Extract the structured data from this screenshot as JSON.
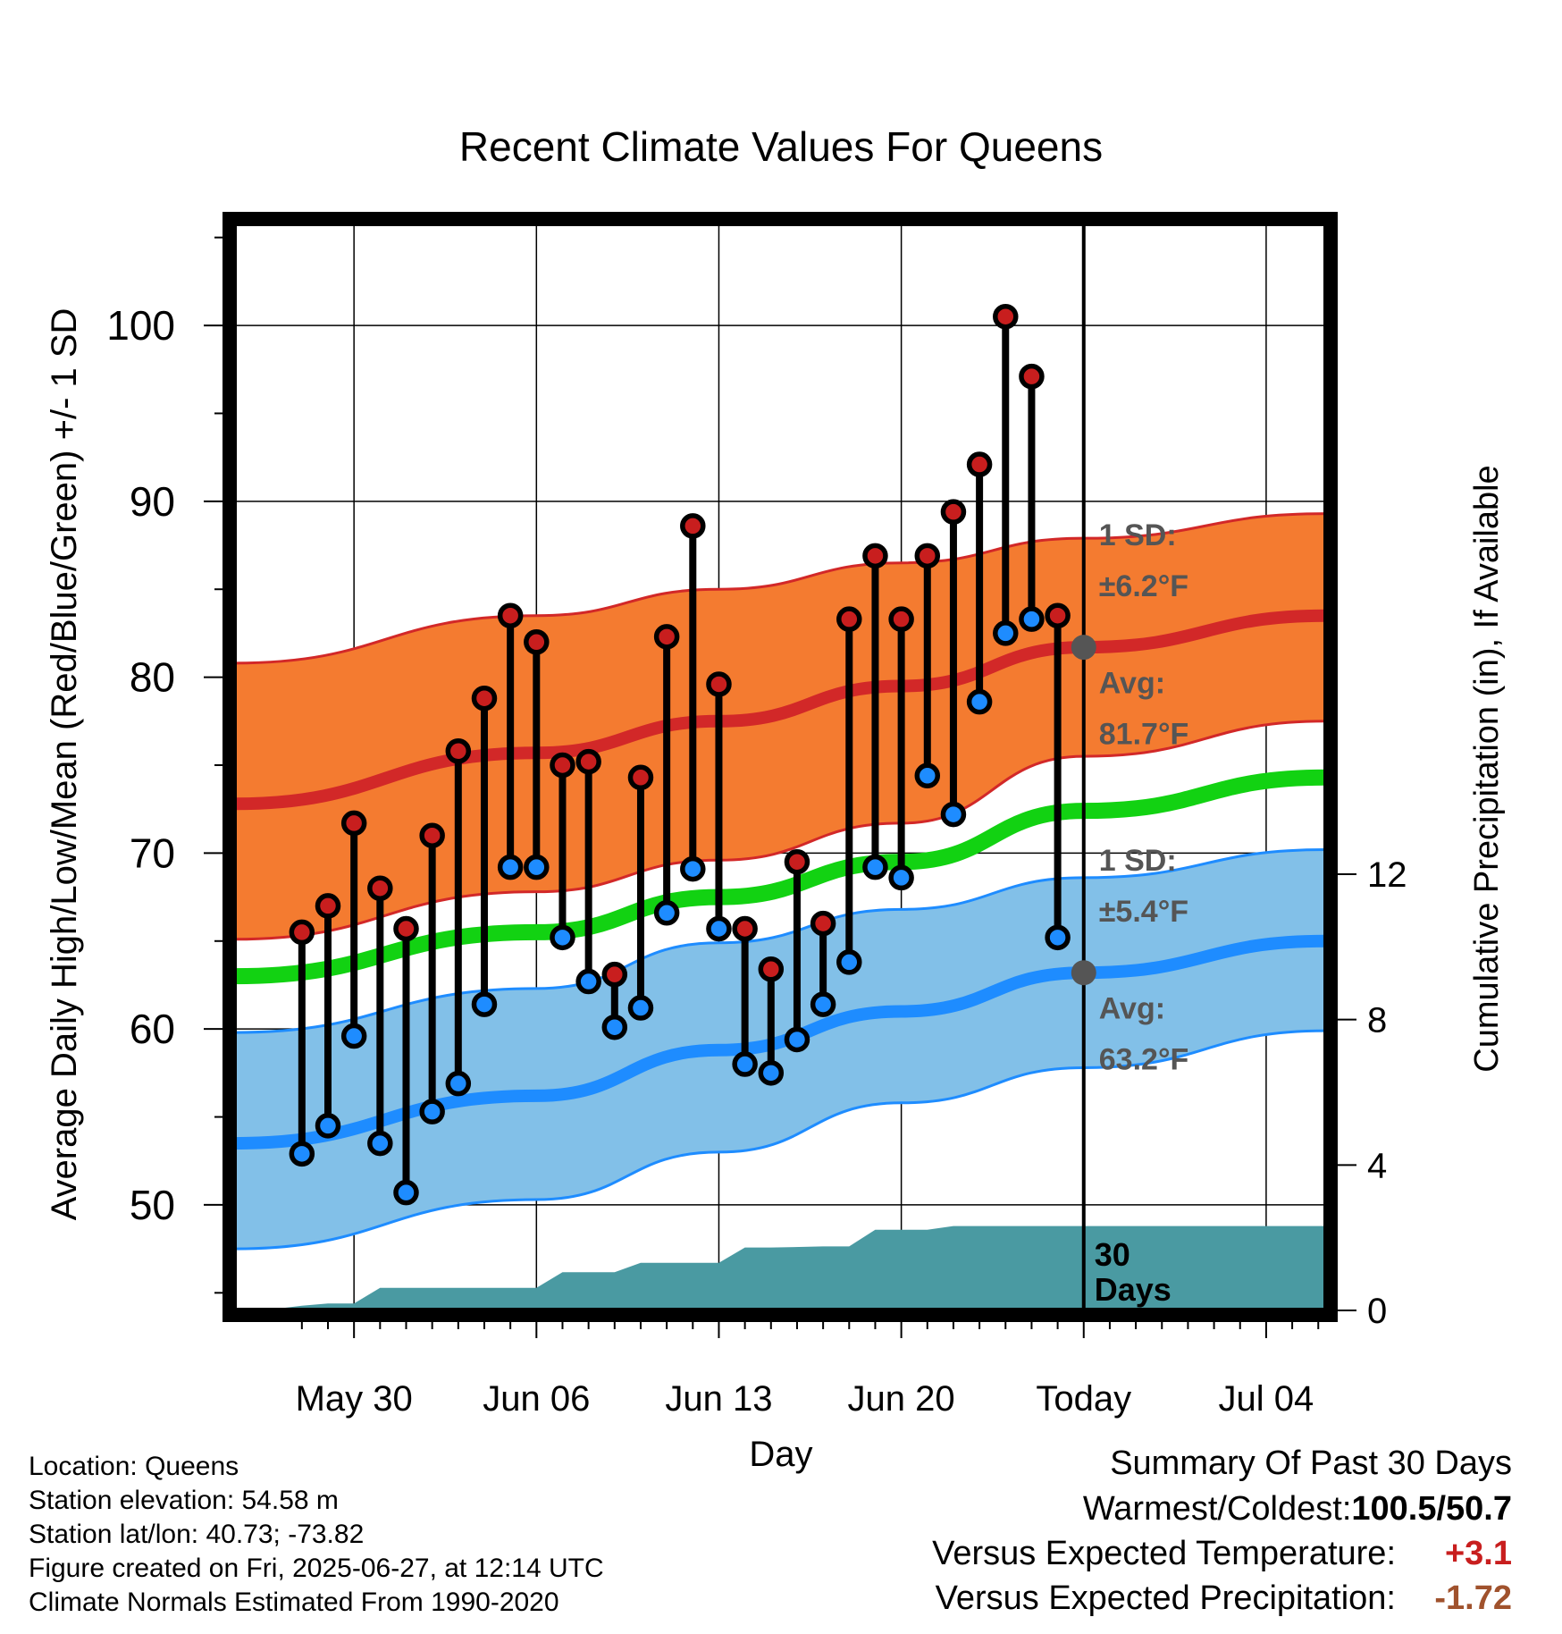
{
  "chart_data": {
    "type": "line",
    "title": "Recent Climate Values For Queens",
    "xlabel": "Day",
    "ylabel": "Average Daily High/Low/Mean (Red/Blue/Green) +/- 1 SD",
    "y2label": "Cumulative Precipitation (in), If Available",
    "ylim": [
      44,
      106
    ],
    "y_ticks": [
      50,
      60,
      70,
      80,
      90,
      100
    ],
    "y2lim": [
      0,
      30
    ],
    "y2_ticks": [
      0,
      4,
      8,
      12
    ],
    "x_range_days": [
      -32.6,
      9.3
    ],
    "x_ticks": [
      {
        "day": -28,
        "label": "May 30"
      },
      {
        "day": -21,
        "label": "Jun 06"
      },
      {
        "day": -14,
        "label": "Jun 13"
      },
      {
        "day": -7,
        "label": "Jun 20"
      },
      {
        "day": 0,
        "label": "Today"
      },
      {
        "day": 7,
        "label": "Jul 04"
      }
    ],
    "grid": true,
    "today_marker_day": 0,
    "period_label": "30 Days",
    "normals": {
      "days": [
        -32.6,
        -21,
        -14,
        -7,
        0,
        9.3
      ],
      "high_avg": [
        72.8,
        75.7,
        77.5,
        79.5,
        81.7,
        83.5
      ],
      "high_sd_upper": [
        80.8,
        83.5,
        85.0,
        86.5,
        87.9,
        89.3
      ],
      "high_sd_lower": [
        65.1,
        67.8,
        69.6,
        71.7,
        75.5,
        77.5
      ],
      "mean_avg": [
        63.0,
        65.5,
        67.5,
        69.5,
        72.4,
        74.3
      ],
      "low_avg": [
        53.5,
        56.2,
        58.8,
        61.0,
        63.2,
        65.0
      ],
      "low_sd_upper": [
        59.8,
        62.3,
        64.9,
        66.8,
        68.6,
        70.2
      ],
      "low_sd_lower": [
        47.5,
        50.3,
        53.0,
        55.8,
        57.8,
        59.9
      ]
    },
    "high_annotation": {
      "sd_label": "1 SD:",
      "sd_value": "±6.2°F",
      "avg_label": "Avg:",
      "avg_value": "81.7°F"
    },
    "low_annotation": {
      "sd_label": "1 SD:",
      "sd_value": "±5.4°F",
      "avg_label": "Avg:",
      "avg_value": "63.2°F"
    },
    "series": [
      {
        "name": "High",
        "color": "#c81e1e",
        "days": [
          -30,
          -29,
          -28,
          -27,
          -26,
          -25,
          -24,
          -23,
          -22,
          -21,
          -20,
          -19,
          -18,
          -17,
          -16,
          -15,
          -14,
          -13,
          -12,
          -11,
          -10,
          -9,
          -8,
          -7,
          -6,
          -5,
          -4,
          -3,
          -2,
          -1
        ],
        "values": [
          65.5,
          67.0,
          71.7,
          68.0,
          65.7,
          71.0,
          75.8,
          78.8,
          83.5,
          82.0,
          75.0,
          75.2,
          63.1,
          74.3,
          82.3,
          88.6,
          79.6,
          65.7,
          63.4,
          69.5,
          66.0,
          83.3,
          86.9,
          83.3,
          86.9,
          89.4,
          92.1,
          100.5,
          97.1,
          83.5
        ]
      },
      {
        "name": "Low",
        "color": "#1e8cff",
        "days": [
          -30,
          -29,
          -28,
          -27,
          -26,
          -25,
          -24,
          -23,
          -22,
          -21,
          -20,
          -19,
          -18,
          -17,
          -16,
          -15,
          -14,
          -13,
          -12,
          -11,
          -10,
          -9,
          -8,
          -7,
          -6,
          -5,
          -4,
          -3,
          -2,
          -1
        ],
        "values": [
          52.9,
          54.5,
          59.6,
          53.5,
          50.7,
          55.3,
          56.9,
          61.4,
          69.2,
          69.2,
          65.2,
          62.7,
          60.1,
          61.2,
          66.6,
          69.1,
          65.7,
          58.0,
          57.5,
          59.4,
          61.4,
          63.8,
          69.2,
          68.6,
          74.4,
          72.2,
          78.6,
          82.5,
          83.3,
          65.2
        ]
      }
    ],
    "precipitation": {
      "days": [
        -32.6,
        -31.5,
        -30,
        -29,
        -28,
        -27,
        -21,
        -20,
        -18,
        -17,
        -14,
        -13,
        -12,
        -10,
        -9,
        -8,
        -7,
        -6,
        -5,
        -3,
        9.3
      ],
      "cumulative_in": [
        0.0,
        0.0,
        0.13,
        0.19,
        0.19,
        0.62,
        0.62,
        1.05,
        1.05,
        1.31,
        1.31,
        1.73,
        1.73,
        1.76,
        1.76,
        2.22,
        2.22,
        2.22,
        2.32,
        2.32,
        2.32
      ]
    }
  },
  "station": {
    "location": "Location: Queens",
    "elevation": "Station elevation: 54.58 m",
    "latlon": "Station lat/lon: 40.73; -73.82",
    "created": "Figure created on Fri, 2025-06-27, at 12:14 UTC",
    "normals": "Climate Normals Estimated From 1990-2020"
  },
  "summary": {
    "title": "Summary Of Past 30 Days",
    "warmest_label": "Warmest/Coldest:",
    "warmest_value": "100.5/50.7",
    "temp_label": "Versus Expected Temperature:",
    "temp_value": "+3.1",
    "precip_label": "Versus Expected Precipitation:",
    "precip_value": "-1.72"
  },
  "colors": {
    "high_band": "#f47b30",
    "high_line": "#d22828",
    "mean_line": "#12d212",
    "low_band": "#82c0e8",
    "low_line": "#1e8cff",
    "precip_fill": "#4a9aa2",
    "annotation_text": "#555555",
    "temp_anomaly": "#c81e1e",
    "precip_anomaly": "#a0522d"
  }
}
